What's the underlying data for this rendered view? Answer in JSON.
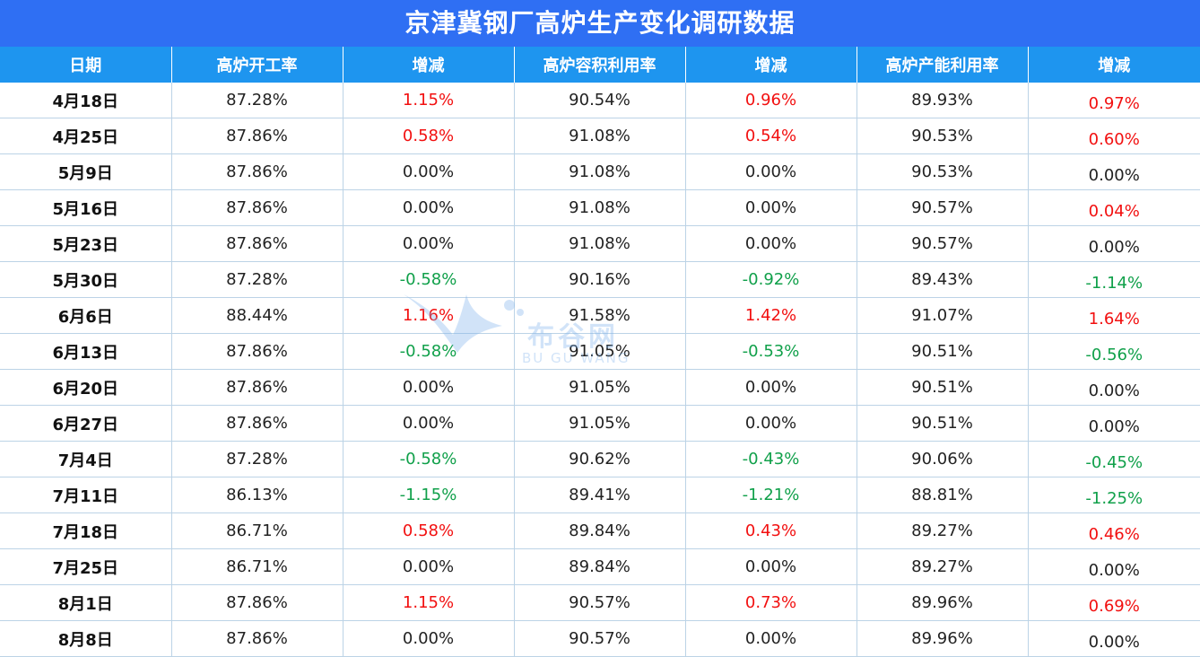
{
  "title": "京津冀钢厂高炉生产变化调研数据",
  "watermark": {
    "text": "布谷网",
    "sub": "BU GU WANG"
  },
  "colors": {
    "title_bg": "#2f6ff3",
    "header_bg": "#1e95ef",
    "positive": "#f21010",
    "negative": "#10a04a"
  },
  "chart_data": {
    "type": "table",
    "title": "京津冀钢厂高炉生产变化调研数据",
    "columns": [
      "日期",
      "高炉开工率",
      "增减",
      "高炉容积利用率",
      "增减",
      "高炉产能利用率",
      "增减"
    ],
    "rows": [
      [
        "4月18日",
        "87.28%",
        "1.15%",
        "90.54%",
        "0.96%",
        "89.93%",
        "0.97%"
      ],
      [
        "4月25日",
        "87.86%",
        "0.58%",
        "91.08%",
        "0.54%",
        "90.53%",
        "0.60%"
      ],
      [
        "5月9日",
        "87.86%",
        "0.00%",
        "91.08%",
        "0.00%",
        "90.53%",
        "0.00%"
      ],
      [
        "5月16日",
        "87.86%",
        "0.00%",
        "91.08%",
        "0.00%",
        "90.57%",
        "0.04%"
      ],
      [
        "5月23日",
        "87.86%",
        "0.00%",
        "91.08%",
        "0.00%",
        "90.57%",
        "0.00%"
      ],
      [
        "5月30日",
        "87.28%",
        "-0.58%",
        "90.16%",
        "-0.92%",
        "89.43%",
        "-1.14%"
      ],
      [
        "6月6日",
        "88.44%",
        "1.16%",
        "91.58%",
        "1.42%",
        "91.07%",
        "1.64%"
      ],
      [
        "6月13日",
        "87.86%",
        "-0.58%",
        "91.05%",
        "-0.53%",
        "90.51%",
        "-0.56%"
      ],
      [
        "6月20日",
        "87.86%",
        "0.00%",
        "91.05%",
        "0.00%",
        "90.51%",
        "0.00%"
      ],
      [
        "6月27日",
        "87.86%",
        "0.00%",
        "91.05%",
        "0.00%",
        "90.51%",
        "0.00%"
      ],
      [
        "7月4日",
        "87.28%",
        "-0.58%",
        "90.62%",
        "-0.43%",
        "90.06%",
        "-0.45%"
      ],
      [
        "7月11日",
        "86.13%",
        "-1.15%",
        "89.41%",
        "-1.21%",
        "88.81%",
        "-1.25%"
      ],
      [
        "7月18日",
        "86.71%",
        "0.58%",
        "89.84%",
        "0.43%",
        "89.27%",
        "0.46%"
      ],
      [
        "7月25日",
        "86.71%",
        "0.00%",
        "89.84%",
        "0.00%",
        "89.27%",
        "0.00%"
      ],
      [
        "8月1日",
        "87.86%",
        "1.15%",
        "90.57%",
        "0.73%",
        "89.96%",
        "0.69%"
      ],
      [
        "8月8日",
        "87.86%",
        "0.00%",
        "90.57%",
        "0.00%",
        "89.96%",
        "0.00%"
      ]
    ]
  }
}
